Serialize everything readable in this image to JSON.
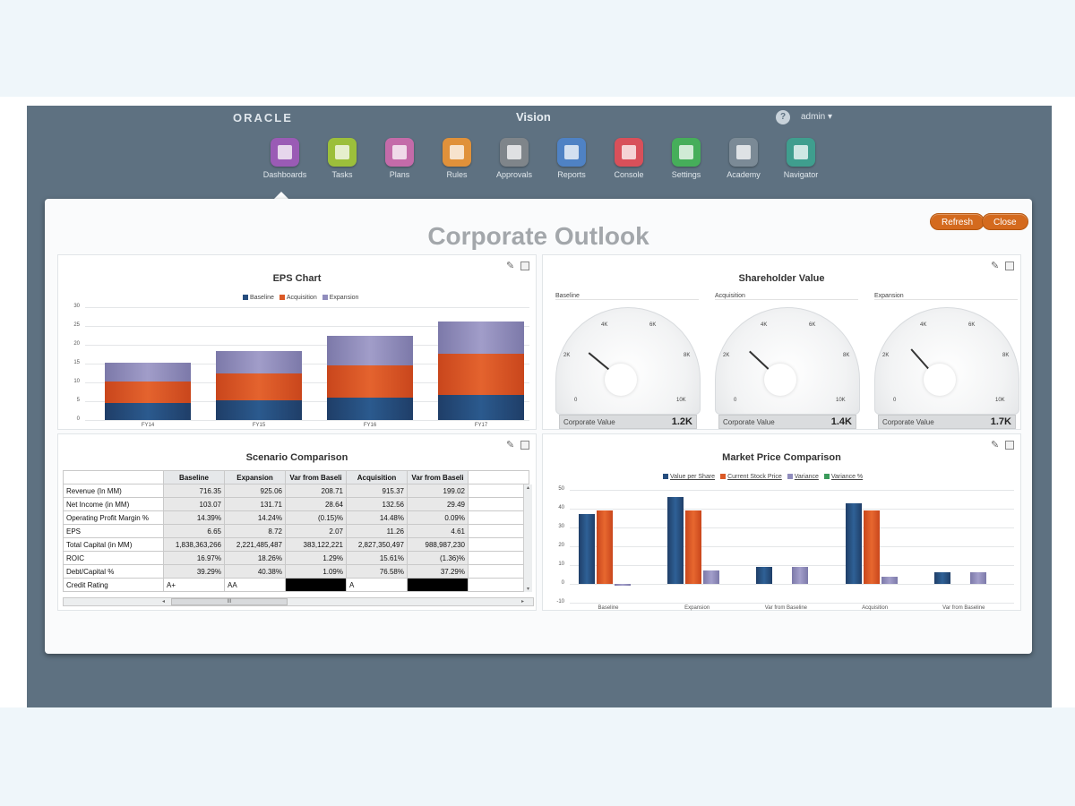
{
  "header": {
    "logo": "ORACLE",
    "app_title": "Vision",
    "user": "admin ▾",
    "help_glyph": "?"
  },
  "nav": [
    {
      "label": "Dashboards",
      "icon": "dashboards-icon",
      "color": "#9a5bb5"
    },
    {
      "label": "Tasks",
      "icon": "tasks-icon",
      "color": "#9cbf3b"
    },
    {
      "label": "Plans",
      "icon": "plans-icon",
      "color": "#c46ba9"
    },
    {
      "label": "Rules",
      "icon": "rules-icon",
      "color": "#e0913a"
    },
    {
      "label": "Approvals",
      "icon": "approvals-icon",
      "color": "#7f858a"
    },
    {
      "label": "Reports",
      "icon": "reports-icon",
      "color": "#4f82c4"
    },
    {
      "label": "Console",
      "icon": "console-icon",
      "color": "#d8505a"
    },
    {
      "label": "Settings",
      "icon": "settings-icon",
      "color": "#46ae5a"
    },
    {
      "label": "Academy",
      "icon": "academy-icon",
      "color": "#7b8a96"
    },
    {
      "label": "Navigator",
      "icon": "navigator-icon",
      "color": "#3f9e8e"
    }
  ],
  "dashboard": {
    "title": "Corporate Outlook",
    "refresh_label": "Refresh",
    "close_label": "Close",
    "edit_glyph": "✎"
  },
  "eps_chart": {
    "title": "EPS Chart",
    "chart_data": {
      "type": "bar",
      "stacked": true,
      "categories": [
        "FY14",
        "FY15",
        "FY16",
        "FY17"
      ],
      "series": [
        {
          "name": "Baseline",
          "values": [
            4.5,
            5.3,
            6.0,
            6.6
          ],
          "color": "#264d7e"
        },
        {
          "name": "Acquisition",
          "values": [
            5.7,
            7.0,
            8.5,
            11.0
          ],
          "color": "#db5a27"
        },
        {
          "name": "Expansion",
          "values": [
            5.0,
            6.0,
            7.8,
            8.7
          ],
          "color": "#908dbd"
        }
      ],
      "yticks": [
        0,
        5,
        10,
        15,
        20,
        25,
        30
      ],
      "ylim": [
        0,
        30
      ],
      "legend": "top",
      "grid": true
    }
  },
  "shareholder_value": {
    "title": "Shareholder Value",
    "gauges": [
      {
        "name": "Baseline",
        "footer_label": "Corporate Value",
        "value": "1.2K",
        "needle": 1.2
      },
      {
        "name": "Acquisition",
        "footer_label": "Corporate Value",
        "value": "1.4K",
        "needle": 1.4
      },
      {
        "name": "Expansion",
        "footer_label": "Corporate Value",
        "value": "1.7K",
        "needle": 1.7
      }
    ],
    "tick_labels": {
      "t0": "0",
      "t2": "2K",
      "t4": "4K",
      "t6": "6K",
      "t8": "8K",
      "t10": "10K"
    }
  },
  "scenario_comparison": {
    "title": "Scenario Comparison",
    "columns": [
      "Baseline",
      "Expansion",
      "Var from Baseli",
      "Acquisition",
      "Var from Baseli"
    ],
    "rows": [
      {
        "label": "Revenue (In MM)",
        "cells": [
          "716.35",
          "925.06",
          "208.71",
          "915.37",
          "199.02"
        ]
      },
      {
        "label": "Net Income (in MM)",
        "cells": [
          "103.07",
          "131.71",
          "28.64",
          "132.56",
          "29.49"
        ]
      },
      {
        "label": "Operating Profit Margin %",
        "cells": [
          "14.39%",
          "14.24%",
          "(0.15)%",
          "14.48%",
          "0.09%"
        ]
      },
      {
        "label": "EPS",
        "cells": [
          "6.65",
          "8.72",
          "2.07",
          "11.26",
          "4.61"
        ]
      },
      {
        "label": "Total Capital (in MM)",
        "cells": [
          "1,838,363,266",
          "2,221,485,487",
          "383,122,221",
          "2,827,350,497",
          "988,987,230"
        ]
      },
      {
        "label": "ROIC",
        "cells": [
          "16.97%",
          "18.26%",
          "1.29%",
          "15.61%",
          "(1.36)%"
        ]
      },
      {
        "label": "Debt/Capital %",
        "cells": [
          "39.29%",
          "40.38%",
          "1.09%",
          "76.58%",
          "37.29%"
        ]
      },
      {
        "label": "Credit Rating",
        "cells": [
          "A+",
          "AA",
          "",
          "A",
          ""
        ]
      }
    ],
    "scroll": {
      "left": "◂",
      "right": "▸",
      "up": "▴",
      "down": "▾",
      "thumb": "III"
    }
  },
  "market_price": {
    "title": "Market Price Comparison",
    "chart_data": {
      "type": "bar",
      "categories": [
        "Baseline",
        "Expansion",
        "Var from Baseline",
        "Acquisition",
        "Var from Baseline"
      ],
      "series": [
        {
          "name": "Value per Share",
          "values": [
            37,
            46,
            9,
            43,
            6
          ],
          "color": "#264d7e"
        },
        {
          "name": "Current Stock Price",
          "values": [
            39,
            39,
            0,
            39,
            0
          ],
          "color": "#db5a27"
        },
        {
          "name": "Variance",
          "values": [
            -1,
            7,
            9,
            4,
            6
          ],
          "color": "#908dbd"
        }
      ],
      "extra_legend": {
        "name": "Variance %",
        "color": "#3a9a5a"
      },
      "yticks": [
        -10,
        0,
        10,
        20,
        30,
        40,
        50
      ],
      "ylim": [
        -10,
        50
      ],
      "legend": "top",
      "grid": true
    }
  }
}
